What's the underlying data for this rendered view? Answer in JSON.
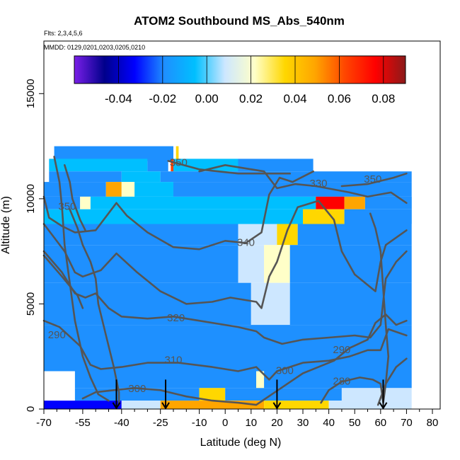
{
  "chart_data": {
    "type": "heatmap",
    "title": "ATOM2 Southbound MS_Abs_540nm",
    "notes": [
      "Flts: 2,3,4,5,6",
      "MMDD: 0129,0201,0203,0205,0210"
    ],
    "xlabel": "Latitude (deg N)",
    "ylabel": "Altitude (m)",
    "xlim": [
      -70,
      83
    ],
    "ylim": [
      0,
      17500
    ],
    "x_ticks": [
      -70,
      -55,
      -40,
      -25,
      -10,
      0,
      10,
      20,
      30,
      40,
      50,
      60,
      70,
      80
    ],
    "y_ticks": [
      0,
      5000,
      10000,
      15000
    ],
    "colorbar": {
      "range": [
        -0.06,
        0.09
      ],
      "ticks": [
        -0.04,
        -0.02,
        0.0,
        0.02,
        0.04,
        0.06,
        0.08
      ],
      "tick_labels": [
        "-0.04",
        "-0.02",
        "0.00",
        "0.02",
        "0.04",
        "0.06",
        "0.08"
      ],
      "colors": [
        "#7a1fe8",
        "#00008b",
        "#0000ff",
        "#1e90ff",
        "#00bfff",
        "#cde7ff",
        "#ffffc8",
        "#ffd700",
        "#ffa500",
        "#ff4500",
        "#ff0000",
        "#8b1a1a"
      ]
    },
    "contour_labels": [
      {
        "text": "350",
        "x": -61,
        "y": 9600
      },
      {
        "text": "350",
        "x": -18,
        "y": 11700
      },
      {
        "text": "330",
        "x": 36,
        "y": 10700
      },
      {
        "text": "350",
        "x": 57,
        "y": 10900
      },
      {
        "text": "340",
        "x": 8,
        "y": 7900
      },
      {
        "text": "320",
        "x": -19,
        "y": 4300
      },
      {
        "text": "310",
        "x": -20,
        "y": 2300
      },
      {
        "text": "300",
        "x": -34,
        "y": 950
      },
      {
        "text": "300",
        "x": 23,
        "y": 1800
      },
      {
        "text": "290",
        "x": -65,
        "y": 3500
      },
      {
        "text": "290",
        "x": 45,
        "y": 2800
      },
      {
        "text": "280",
        "x": 45,
        "y": 1300
      }
    ],
    "arrows_at_latitude": [
      -42,
      -23,
      20,
      61
    ],
    "contour_lines": [
      {
        "level": 350,
        "points": [
          [
            -62,
            11600
          ],
          [
            -60,
            10800
          ],
          [
            -59,
            10000
          ],
          [
            -56,
            9000
          ],
          [
            -54,
            8500
          ]
        ]
      },
      {
        "level": 350,
        "points": [
          [
            -22,
            11800
          ],
          [
            -10,
            11400
          ],
          [
            5,
            11200
          ],
          [
            25,
            11200
          ]
        ]
      },
      {
        "level": 330,
        "points": [
          [
            -10,
            11300
          ],
          [
            0,
            11600
          ],
          [
            15,
            11300
          ],
          [
            20,
            10500
          ],
          [
            27,
            10700
          ],
          [
            35,
            10600
          ],
          [
            48,
            10300
          ],
          [
            55,
            10100
          ],
          [
            64,
            10300
          ],
          [
            70,
            9800
          ]
        ]
      },
      {
        "level": 350,
        "points": [
          [
            45,
            10600
          ],
          [
            55,
            10700
          ],
          [
            65,
            11000
          ],
          [
            70,
            11200
          ]
        ]
      },
      {
        "level": 340,
        "points": [
          [
            -70,
            10100
          ],
          [
            -68,
            9100
          ],
          [
            -63,
            8700
          ],
          [
            -58,
            8400
          ],
          [
            -50,
            8500
          ],
          [
            -42,
            9800
          ],
          [
            -38,
            9200
          ],
          [
            -30,
            8400
          ],
          [
            -20,
            7700
          ],
          [
            -10,
            7600
          ],
          [
            0,
            8000
          ],
          [
            8,
            7900
          ],
          [
            14,
            8400
          ],
          [
            17,
            10200
          ],
          [
            21,
            11000
          ],
          [
            26,
            10800
          ],
          [
            34,
            11300
          ]
        ]
      },
      {
        "level": 330,
        "points": [
          [
            -70,
            8800
          ],
          [
            -62,
            7500
          ],
          [
            -58,
            6500
          ],
          [
            -55,
            6300
          ],
          [
            -48,
            6600
          ],
          [
            -42,
            7400
          ],
          [
            -34,
            6500
          ],
          [
            -25,
            5600
          ],
          [
            -15,
            5000
          ],
          [
            -5,
            5100
          ],
          [
            2,
            5300
          ],
          [
            12,
            5100
          ],
          [
            14,
            4800
          ],
          [
            17,
            6300
          ],
          [
            20,
            7000
          ],
          [
            24,
            8500
          ],
          [
            28,
            9600
          ],
          [
            36,
            9900
          ],
          [
            42,
            9000
          ],
          [
            45,
            7500
          ],
          [
            50,
            6400
          ],
          [
            58,
            5600
          ],
          [
            60,
            7000
          ],
          [
            62,
            7800
          ],
          [
            70,
            8500
          ]
        ]
      },
      {
        "level": 320,
        "points": [
          [
            -70,
            7500
          ],
          [
            -63,
            6500
          ],
          [
            -58,
            5500
          ],
          [
            -54,
            5300
          ],
          [
            -50,
            5500
          ],
          [
            -45,
            4800
          ],
          [
            -40,
            4400
          ],
          [
            -30,
            4300
          ],
          [
            -20,
            4400
          ],
          [
            -10,
            4200
          ],
          [
            5,
            3900
          ],
          [
            12,
            3700
          ],
          [
            15,
            3400
          ],
          [
            22,
            3100
          ],
          [
            30,
            3300
          ],
          [
            40,
            3400
          ],
          [
            50,
            3500
          ],
          [
            56,
            3400
          ],
          [
            60,
            4000
          ],
          [
            62,
            6200
          ],
          [
            66,
            7000
          ],
          [
            70,
            7500
          ]
        ]
      },
      {
        "level": 310,
        "points": [
          [
            -70,
            4200
          ],
          [
            -64,
            3900
          ],
          [
            -56,
            3000
          ],
          [
            -52,
            2100
          ],
          [
            -48,
            1900
          ],
          [
            -40,
            2000
          ],
          [
            -30,
            2200
          ],
          [
            -18,
            2200
          ],
          [
            -5,
            2000
          ],
          [
            5,
            1800
          ],
          [
            12,
            2000
          ],
          [
            17,
            1400
          ],
          [
            20,
            1800
          ],
          [
            30,
            2200
          ],
          [
            40,
            2300
          ],
          [
            48,
            2500
          ],
          [
            55,
            2800
          ],
          [
            60,
            2800
          ],
          [
            63,
            3800
          ],
          [
            70,
            3500
          ]
        ]
      },
      {
        "level": 300,
        "points": [
          [
            -55,
            500
          ],
          [
            -50,
            800
          ],
          [
            -43,
            900
          ],
          [
            -35,
            1000
          ],
          [
            -25,
            900
          ],
          [
            -15,
            600
          ],
          [
            -5,
            400
          ],
          [
            5,
            300
          ],
          [
            12,
            200
          ],
          [
            18,
            700
          ],
          [
            24,
            1200
          ],
          [
            30,
            1700
          ],
          [
            36,
            2000
          ],
          [
            42,
            2300
          ],
          [
            48,
            2900
          ],
          [
            55,
            3300
          ],
          [
            58,
            4100
          ],
          [
            62,
            4500
          ],
          [
            66,
            4000
          ],
          [
            70,
            4200
          ]
        ]
      },
      {
        "level": 290,
        "points": [
          [
            -60,
            9500
          ],
          [
            -57,
            8600
          ],
          [
            -55,
            7800
          ],
          [
            -52,
            7000
          ],
          [
            -50,
            6200
          ],
          [
            -49,
            5000
          ],
          [
            -46,
            3500
          ],
          [
            -43,
            2000
          ],
          [
            -41,
            800
          ],
          [
            -41,
            200
          ]
        ]
      },
      {
        "level": 280,
        "points": [
          [
            37,
            300
          ],
          [
            40,
            900
          ],
          [
            45,
            1300
          ],
          [
            52,
            1500
          ],
          [
            57,
            1400
          ],
          [
            60,
            1200
          ],
          [
            61,
            300
          ],
          [
            62,
            1200
          ],
          [
            66,
            2000
          ],
          [
            70,
            2400
          ]
        ]
      },
      {
        "level": 300,
        "points": [
          [
            -66,
            12000
          ],
          [
            -64,
            10800
          ],
          [
            -63,
            9600
          ],
          [
            -62,
            7800
          ],
          [
            -60,
            6000
          ],
          [
            -58,
            4200
          ],
          [
            -55,
            2500
          ],
          [
            -52,
            1500
          ],
          [
            -49,
            700
          ],
          [
            -45,
            400
          ]
        ]
      },
      {
        "level": 320,
        "points": [
          [
            59,
            200
          ],
          [
            62,
            1200
          ],
          [
            63,
            2500
          ],
          [
            62,
            4000
          ],
          [
            61,
            5700
          ],
          [
            60,
            7500
          ],
          [
            58,
            8600
          ],
          [
            56,
            9300
          ]
        ]
      },
      {
        "level": 340,
        "points": [
          [
            -70,
            7300
          ],
          [
            -63,
            6300
          ],
          [
            -57,
            5400
          ],
          [
            -55,
            4800
          ]
        ]
      }
    ],
    "heatmap_rows": [
      {
        "alt": [
          11800,
          12500
        ],
        "x": [
          -66,
          -18
        ],
        "cells": [
          [
            "#1e90ff",
            -66,
            -20
          ],
          [
            "#ffd700",
            -19,
            -18
          ]
        ]
      },
      {
        "alt": [
          11300,
          11900
        ],
        "x": [
          -68,
          34
        ],
        "cells": [
          [
            "#00bfff",
            -68,
            -30
          ],
          [
            "#1e90ff",
            -30,
            -22
          ],
          [
            "#ff4500",
            -21,
            -20
          ],
          [
            "#00bfff",
            -20,
            5
          ],
          [
            "#1e90ff",
            5,
            34
          ]
        ]
      },
      {
        "alt": [
          10800,
          11300
        ],
        "x": [
          -68,
          72
        ],
        "cells": [
          [
            "#1e90ff",
            -68,
            -40
          ],
          [
            "#00bfff",
            -40,
            -25
          ],
          [
            "#1e90ff",
            -25,
            72
          ]
        ]
      },
      {
        "alt": [
          10100,
          10800
        ],
        "x": [
          -70,
          72
        ],
        "cells": [
          [
            "#1e90ff",
            -70,
            -46
          ],
          [
            "#ffa500",
            -46,
            -40
          ],
          [
            "#ffffc8",
            -40,
            -35
          ],
          [
            "#00bfff",
            -35,
            -20
          ],
          [
            "#1e90ff",
            -20,
            72
          ]
        ]
      },
      {
        "alt": [
          9500,
          10100
        ],
        "x": [
          -70,
          72
        ],
        "cells": [
          [
            "#1e90ff",
            -70,
            -56
          ],
          [
            "#ffffc8",
            -56,
            -52
          ],
          [
            "#00bfff",
            -52,
            35
          ],
          [
            "#ff0000",
            35,
            46
          ],
          [
            "#ffa500",
            46,
            54
          ],
          [
            "#1e90ff",
            54,
            72
          ]
        ]
      },
      {
        "alt": [
          8800,
          9500
        ],
        "x": [
          -70,
          72
        ],
        "cells": [
          [
            "#00bfff",
            -70,
            30
          ],
          [
            "#ffd700",
            30,
            46
          ],
          [
            "#1e90ff",
            46,
            72
          ]
        ]
      },
      {
        "alt": [
          7800,
          8800
        ],
        "x": [
          -70,
          72
        ],
        "cells": [
          [
            "#1e90ff",
            -70,
            5
          ],
          [
            "#cde7ff",
            5,
            20
          ],
          [
            "#ffd700",
            20,
            28
          ],
          [
            "#1e90ff",
            28,
            72
          ]
        ]
      },
      {
        "alt": [
          6000,
          7800
        ],
        "x": [
          -70,
          72
        ],
        "cells": [
          [
            "#1e90ff",
            -70,
            5
          ],
          [
            "#cde7ff",
            5,
            15
          ],
          [
            "#ffffc8",
            15,
            25
          ],
          [
            "#1e90ff",
            25,
            72
          ]
        ]
      },
      {
        "alt": [
          4000,
          6000
        ],
        "x": [
          -70,
          72
        ],
        "cells": [
          [
            "#1e90ff",
            -70,
            10
          ],
          [
            "#cde7ff",
            10,
            25
          ],
          [
            "#1e90ff",
            25,
            72
          ]
        ]
      },
      {
        "alt": [
          1800,
          4000
        ],
        "x": [
          -70,
          72
        ],
        "cells": [
          [
            "#1e90ff",
            -70,
            72
          ]
        ]
      },
      {
        "alt": [
          1000,
          1800
        ],
        "x": [
          -58,
          72
        ],
        "cells": [
          [
            "#1e90ff",
            -58,
            12
          ],
          [
            "#ffffc8",
            12,
            15
          ],
          [
            "#1e90ff",
            15,
            72
          ]
        ]
      },
      {
        "alt": [
          400,
          1000
        ],
        "x": [
          -58,
          72
        ],
        "cells": [
          [
            "#1e90ff",
            -58,
            -10
          ],
          [
            "#ffd700",
            -10,
            0
          ],
          [
            "#1e90ff",
            0,
            45
          ],
          [
            "#cde7ff",
            45,
            72
          ]
        ]
      },
      {
        "alt": [
          0,
          400
        ],
        "x": [
          -70,
          72
        ],
        "cells": [
          [
            "#0000ff",
            -70,
            -40
          ],
          [
            "#cde7ff",
            -40,
            -25
          ],
          [
            "#ffa500",
            -25,
            15
          ],
          [
            "#ffd700",
            15,
            40
          ],
          [
            "#cde7ff",
            40,
            72
          ]
        ]
      }
    ]
  }
}
